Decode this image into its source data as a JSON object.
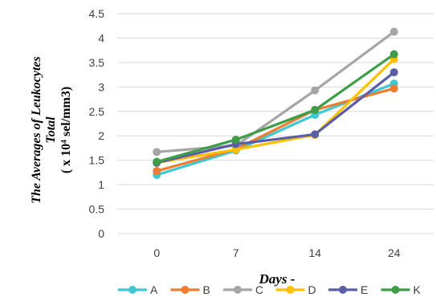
{
  "chart_data": {
    "type": "line",
    "categories": [
      "0",
      "7",
      "14",
      "24"
    ],
    "ylabel_lines": [
      "The Averages of Leukocytes",
      "Total",
      "( x 10⁴ sel/mm3)"
    ],
    "xlabel": "Days -",
    "ylim": [
      0,
      4.5
    ],
    "ytick_step": 0.5,
    "yticks": [
      "0",
      "0.5",
      "1",
      "1.5",
      "2",
      "2.5",
      "3",
      "3.5",
      "4",
      "4.5"
    ],
    "grid": true,
    "legend_position": "bottom",
    "series": [
      {
        "name": "A",
        "color": "#3DC8D2",
        "values": [
          1.2,
          1.7,
          2.43,
          3.07
        ]
      },
      {
        "name": "B",
        "color": "#ED7D31",
        "values": [
          1.28,
          1.73,
          2.53,
          2.97
        ]
      },
      {
        "name": "C",
        "color": "#A5A5A5",
        "values": [
          1.67,
          1.8,
          2.93,
          4.13
        ]
      },
      {
        "name": "D",
        "color": "#FFC000",
        "values": [
          1.45,
          1.72,
          2.02,
          3.57
        ]
      },
      {
        "name": "E",
        "color": "#5B5EA6",
        "values": [
          1.45,
          1.83,
          2.03,
          3.3
        ]
      },
      {
        "name": "K",
        "color": "#3E9E47",
        "values": [
          1.47,
          1.92,
          2.53,
          3.67
        ]
      }
    ]
  }
}
